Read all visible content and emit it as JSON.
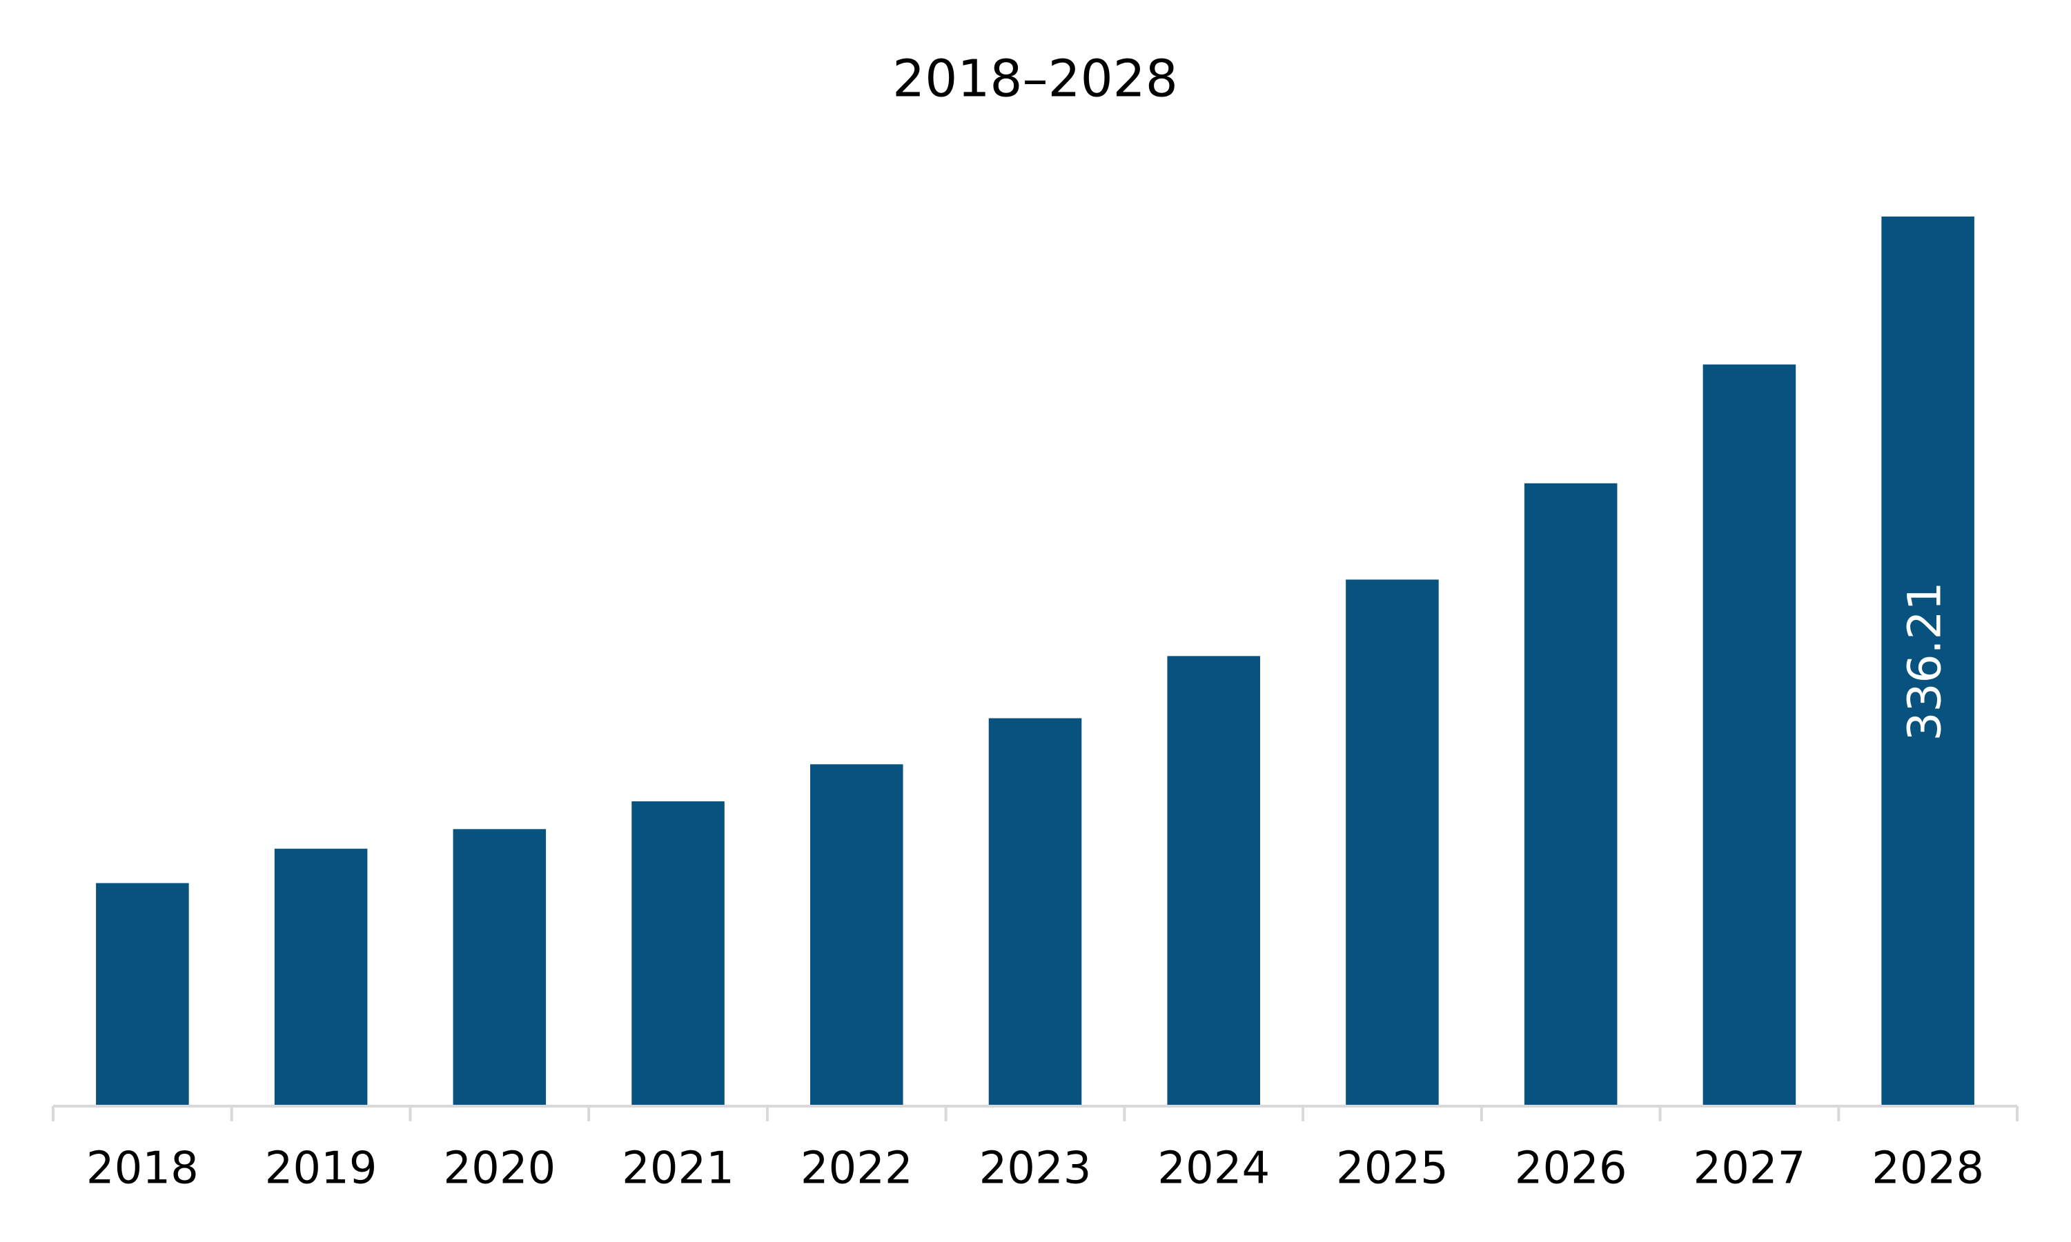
{
  "chart_data": {
    "type": "bar",
    "title": "2018–2028",
    "categories": [
      "2018",
      "2019",
      "2020",
      "2021",
      "2022",
      "2023",
      "2024",
      "2025",
      "2026",
      "2027",
      "2028"
    ],
    "values": [
      84.3,
      97.3,
      104.7,
      115.2,
      129.2,
      146.6,
      170.1,
      199.0,
      235.4,
      280.3,
      336.21
    ],
    "value_labels": [
      null,
      null,
      null,
      null,
      null,
      null,
      null,
      null,
      null,
      null,
      "336.21"
    ],
    "color": "#08527f"
  }
}
